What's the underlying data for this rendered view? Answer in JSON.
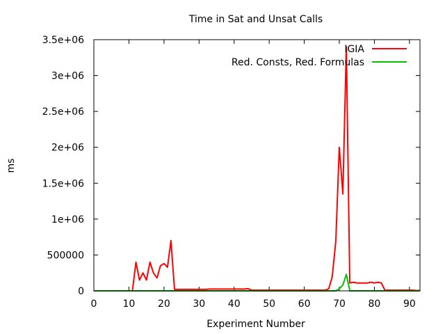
{
  "chart_data": {
    "type": "line",
    "title": "Time in Sat and Unsat Calls",
    "xlabel": "Experiment Number",
    "ylabel": "ms",
    "xlim": [
      0,
      93
    ],
    "ylim": [
      0,
      3500000
    ],
    "x_ticks": [
      "0",
      "10",
      "20",
      "30",
      "40",
      "50",
      "60",
      "70",
      "80",
      "90"
    ],
    "y_ticks": [
      "0",
      "500000",
      "1e+06",
      "1.5e+06",
      "2e+06",
      "2.5e+06",
      "3e+06",
      "3.5e+06"
    ],
    "grid": false,
    "legend_position": "top-right",
    "series": [
      {
        "name": "IGIA",
        "color": "#ff0000",
        "x": [
          0,
          1,
          2,
          3,
          4,
          5,
          6,
          7,
          8,
          9,
          10,
          11,
          12,
          13,
          14,
          15,
          16,
          17,
          18,
          19,
          20,
          21,
          22,
          23,
          24,
          25,
          26,
          27,
          28,
          29,
          30,
          31,
          32,
          33,
          34,
          35,
          36,
          37,
          38,
          39,
          40,
          41,
          42,
          43,
          44,
          45,
          46,
          47,
          48,
          49,
          50,
          51,
          52,
          53,
          54,
          55,
          56,
          57,
          58,
          59,
          60,
          61,
          62,
          63,
          64,
          65,
          66,
          67,
          68,
          69,
          70,
          71,
          72,
          73,
          74,
          75,
          76,
          77,
          78,
          79,
          80,
          81,
          82,
          83,
          84,
          85,
          86,
          87,
          88,
          89,
          90,
          91,
          92,
          93
        ],
        "y": [
          0,
          0,
          0,
          0,
          0,
          0,
          0,
          0,
          0,
          0,
          0,
          0,
          400000,
          150000,
          250000,
          150000,
          400000,
          250000,
          180000,
          350000,
          380000,
          330000,
          700000,
          20000,
          20000,
          20000,
          20000,
          20000,
          20000,
          20000,
          20000,
          20000,
          20000,
          25000,
          25000,
          25000,
          25000,
          25000,
          25000,
          25000,
          25000,
          25000,
          25000,
          25000,
          30000,
          10000,
          10000,
          10000,
          10000,
          10000,
          10000,
          10000,
          10000,
          10000,
          10000,
          10000,
          10000,
          10000,
          10000,
          10000,
          10000,
          10000,
          10000,
          10000,
          10000,
          10000,
          10000,
          30000,
          200000,
          700000,
          2000000,
          1350000,
          3400000,
          110000,
          120000,
          110000,
          110000,
          110000,
          110000,
          120000,
          110000,
          120000,
          110000,
          10000,
          10000,
          10000,
          10000,
          10000,
          10000,
          10000,
          10000,
          10000,
          5000,
          5000
        ]
      },
      {
        "name": "Red. Consts, Red. Formulas",
        "color": "#00c000",
        "x": [
          0,
          10,
          20,
          30,
          40,
          50,
          60,
          65,
          66,
          67,
          68,
          69,
          70,
          71,
          72,
          73,
          74,
          80,
          90,
          93
        ],
        "y": [
          0,
          0,
          0,
          0,
          0,
          0,
          0,
          0,
          0,
          0,
          0,
          0,
          30000,
          80000,
          230000,
          0,
          0,
          0,
          0,
          0
        ]
      }
    ]
  }
}
